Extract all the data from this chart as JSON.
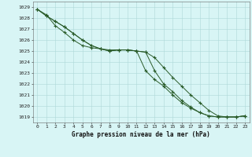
{
  "title": "Graphe pression niveau de la mer (hPa)",
  "ylim": [
    1018.5,
    1029.5
  ],
  "xlim": [
    -0.5,
    23.5
  ],
  "yticks": [
    1019,
    1020,
    1021,
    1022,
    1023,
    1024,
    1025,
    1026,
    1027,
    1028,
    1029
  ],
  "xticks": [
    0,
    1,
    2,
    3,
    4,
    5,
    6,
    7,
    8,
    9,
    10,
    11,
    12,
    13,
    14,
    15,
    16,
    17,
    18,
    19,
    20,
    21,
    22,
    23
  ],
  "bg_color": "#d8f5f5",
  "grid_color": "#aed8d8",
  "line_color": "#2a5c2a",
  "l1": [
    1028.8,
    1028.2,
    1027.7,
    1027.2,
    1026.6,
    1026.0,
    1025.5,
    1025.2,
    1025.0,
    1025.1,
    1025.1,
    1025.0,
    1024.9,
    1024.4,
    1023.5,
    1022.6,
    1021.8,
    1021.0,
    1020.3,
    1019.6,
    1019.1,
    1019.0,
    1019.0,
    1019.1
  ],
  "l2": [
    1028.8,
    1028.2,
    1027.7,
    1027.2,
    1026.6,
    1026.0,
    1025.5,
    1025.2,
    1025.0,
    1025.1,
    1025.1,
    1025.0,
    1024.9,
    1023.2,
    1022.0,
    1021.3,
    1020.5,
    1019.9,
    1019.4,
    1019.1,
    1019.0,
    1019.0,
    1019.0,
    1019.1
  ],
  "l3": [
    1028.8,
    1028.3,
    1027.3,
    1026.7,
    1026.0,
    1025.5,
    1025.3,
    1025.2,
    1025.1,
    1025.1,
    1025.1,
    1025.0,
    1023.2,
    1022.4,
    1021.8,
    1021.0,
    1020.3,
    1019.8,
    1019.4,
    1019.1,
    1019.0,
    1019.0,
    1019.0,
    1019.1
  ]
}
